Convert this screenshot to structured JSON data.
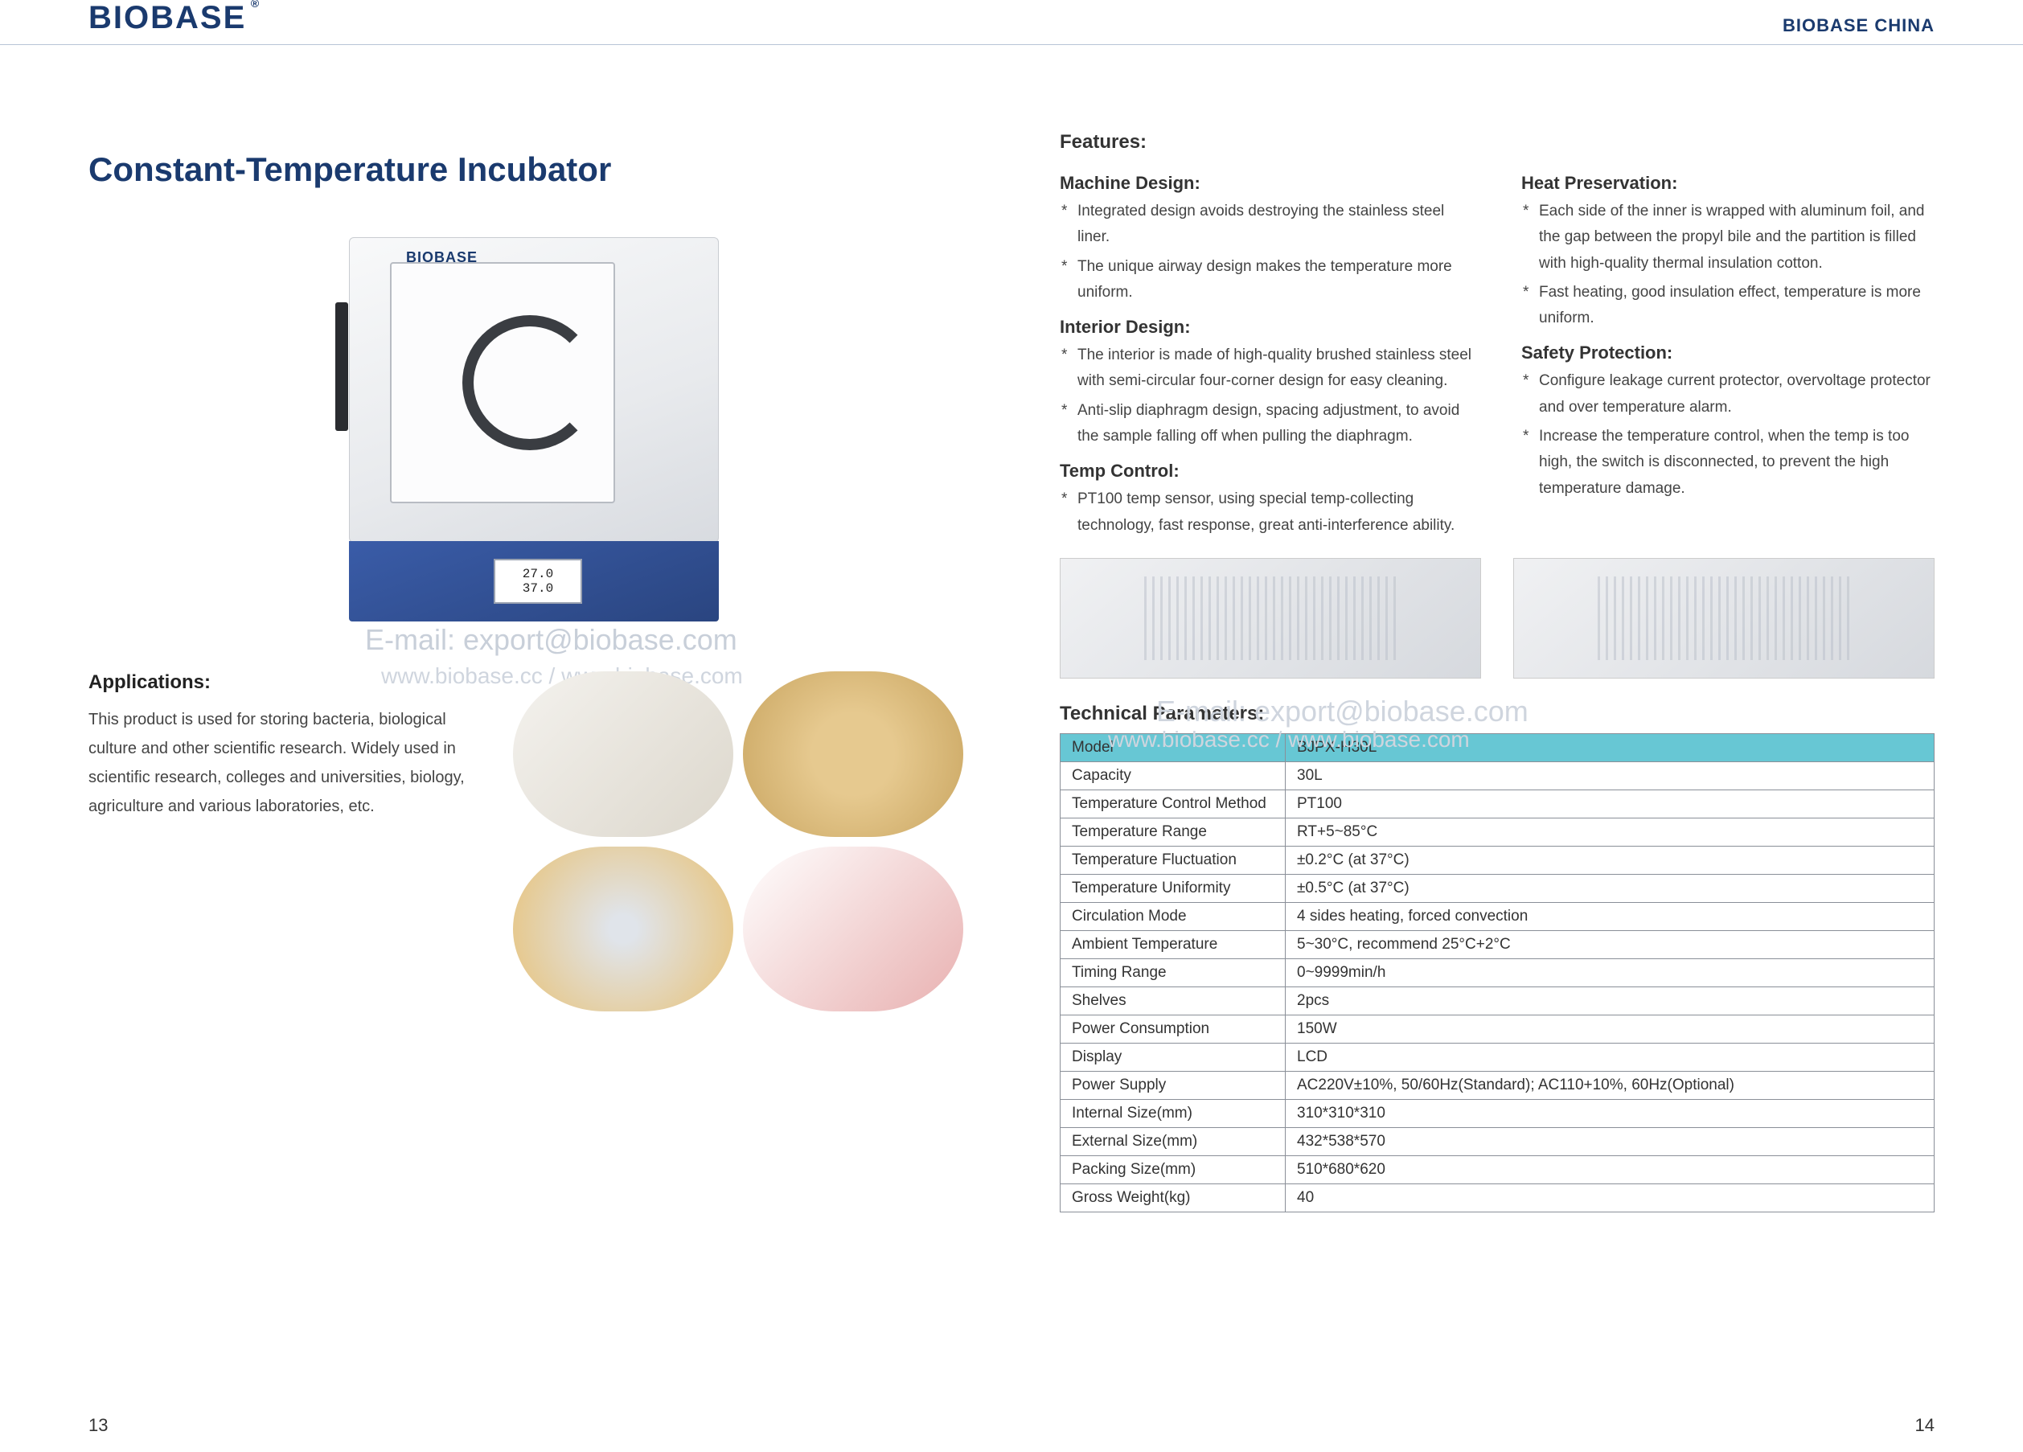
{
  "header": {
    "logo": "BIOBASE",
    "brand_right": "BIOBASE CHINA"
  },
  "left": {
    "title": "Constant-Temperature Incubator",
    "device_logo": "BIOBASE",
    "display_line1": "27.0",
    "display_line2": "37.0",
    "watermark_brand": "BIOBASE",
    "watermark_email": "E-mail: export@biobase.com",
    "watermark_url": "www.biobase.cc / www.biobase.com",
    "applications_heading": "Applications:",
    "applications_text": "This product is used for storing bacteria, biological culture and other scientific research. Widely used in scientific research, colleges and universities, biology, agriculture and various laboratories, etc.",
    "page_number": "13"
  },
  "right": {
    "features_heading": "Features:",
    "col1": [
      {
        "sub": "Machine Design:",
        "items": [
          "Integrated design avoids destroying the stainless steel liner.",
          "The unique airway design makes the temperature more uniform."
        ]
      },
      {
        "sub": "Interior Design:",
        "items": [
          "The interior is made of high-quality brushed stainless steel with semi-circular four-corner design for easy cleaning.",
          "Anti-slip diaphragm design, spacing adjustment, to avoid the sample falling off when pulling the diaphragm."
        ]
      },
      {
        "sub": "Temp Control:",
        "items": [
          "PT100 temp sensor, using special temp-collecting technology, fast response, great anti-interference ability."
        ]
      }
    ],
    "col2": [
      {
        "sub": "Heat Preservation:",
        "items": [
          "Each side of the inner is wrapped with aluminum foil, and the gap between the propyl bile and the partition is filled with high-quality thermal insulation cotton.",
          "Fast heating, good insulation effect, temperature is more uniform."
        ]
      },
      {
        "sub": "Safety Protection:",
        "items": [
          "Configure leakage current protector, overvoltage protector and over temperature alarm.",
          "Increase the temperature control, when the temp is too high, the switch is disconnected, to prevent the high temperature damage."
        ]
      }
    ],
    "tech_heading": "Technical Parameters:",
    "watermark_email": "E-mail: export@biobase.com",
    "watermark_url": "www.biobase.cc / www.biobase.com",
    "table": {
      "header_label": "Model",
      "header_value": "BJPX-H30L",
      "rows": [
        [
          "Capacity",
          "30L"
        ],
        [
          "Temperature Control Method",
          "PT100"
        ],
        [
          "Temperature Range",
          "RT+5~85°C"
        ],
        [
          "Temperature Fluctuation",
          "±0.2°C (at 37°C)"
        ],
        [
          "Temperature Uniformity",
          "±0.5°C (at 37°C)"
        ],
        [
          "Circulation Mode",
          "4 sides heating, forced convection"
        ],
        [
          "Ambient Temperature",
          "5~30°C, recommend 25°C+2°C"
        ],
        [
          "Timing Range",
          "0~9999min/h"
        ],
        [
          "Shelves",
          "2pcs"
        ],
        [
          "Power Consumption",
          "150W"
        ],
        [
          "Display",
          "LCD"
        ],
        [
          "Power Supply",
          "AC220V±10%, 50/60Hz(Standard); AC110+10%,  60Hz(Optional)"
        ],
        [
          "Internal Size(mm)",
          "310*310*310"
        ],
        [
          "External Size(mm)",
          "432*538*570"
        ],
        [
          "Packing Size(mm)",
          "510*680*620"
        ],
        [
          "Gross Weight(kg)",
          "40"
        ]
      ]
    },
    "page_number": "14"
  },
  "style": {
    "brand_color": "#1a3a6e",
    "table_header_bg": "#67c7d4",
    "table_border": "#8a8f98",
    "body_text_color": "#444444",
    "title_fontsize_pt": 32,
    "section_fontsize_pt": 18,
    "body_fontsize_pt": 14
  }
}
